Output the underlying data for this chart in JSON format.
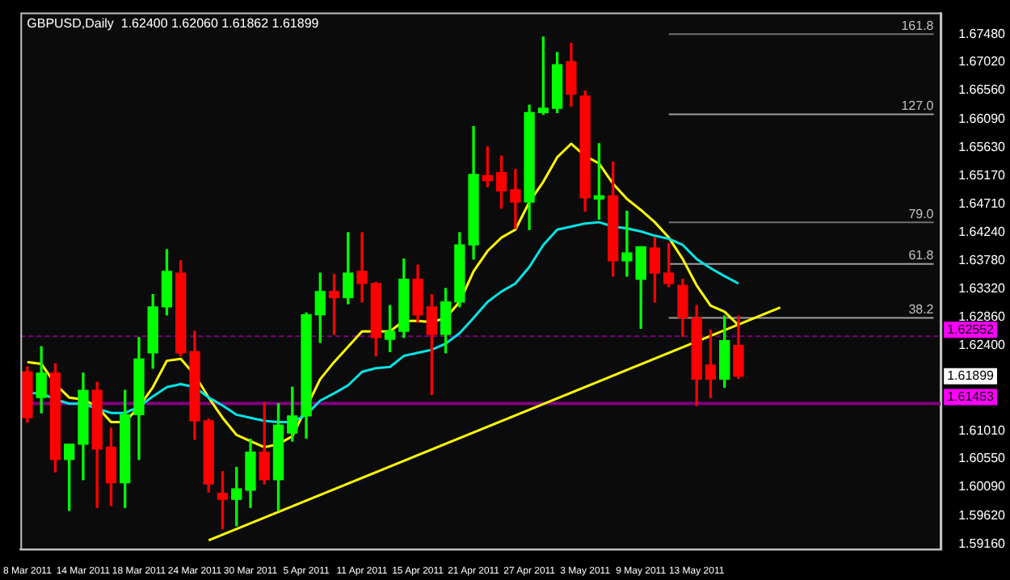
{
  "chart_data": {
    "type": "candlestick",
    "title": "GBPUSD,Daily  1.62400 1.62060 1.61862 1.61899",
    "categories": [
      "8 Mar 2011",
      null,
      null,
      null,
      "14 Mar 2011",
      null,
      null,
      null,
      "18 Mar 2011",
      null,
      null,
      null,
      "24 Mar 2011",
      null,
      null,
      null,
      "30 Mar 2011",
      null,
      null,
      null,
      "5 Apr 2011",
      null,
      null,
      null,
      "11 Apr 2011",
      null,
      null,
      null,
      "15 Apr 2011",
      null,
      null,
      null,
      "21 Apr 2011",
      null,
      null,
      null,
      "27 Apr 2011",
      null,
      null,
      null,
      "3 May 2011",
      null,
      null,
      null,
      "9 May 2011",
      null,
      null,
      null,
      "13 May 2011",
      null,
      null,
      null,
      null,
      null,
      null,
      null,
      null,
      null,
      null,
      null,
      null,
      null,
      null,
      null,
      null,
      null
    ],
    "ohlc": [
      [
        1.6197,
        1.6205,
        1.6115,
        1.6122
      ],
      [
        1.6155,
        1.6238,
        1.613,
        1.6195
      ],
      [
        1.6195,
        1.621,
        1.6034,
        1.6054
      ],
      [
        1.6054,
        1.6079,
        1.5971,
        1.6079
      ],
      [
        1.6079,
        1.6195,
        1.6021,
        1.6167
      ],
      [
        1.6167,
        1.618,
        1.5976,
        1.6071
      ],
      [
        1.6074,
        1.6105,
        1.5979,
        1.6016
      ],
      [
        1.6016,
        1.6167,
        1.5976,
        1.6127
      ],
      [
        1.6127,
        1.6253,
        1.6054,
        1.6218
      ],
      [
        1.6228,
        1.6323,
        1.6203,
        1.6303
      ],
      [
        1.6303,
        1.6396,
        1.629,
        1.6361
      ],
      [
        1.6358,
        1.6378,
        1.6223,
        1.6228
      ],
      [
        1.623,
        1.6263,
        1.6087,
        1.6117
      ],
      [
        1.6117,
        1.612,
        1.6001,
        1.6014
      ],
      [
        1.5999,
        1.6034,
        1.5941,
        1.5989
      ],
      [
        1.5989,
        1.6041,
        1.5946,
        1.6006
      ],
      [
        1.6004,
        1.6087,
        1.5976,
        1.6066
      ],
      [
        1.6066,
        1.6147,
        1.6014,
        1.6021
      ],
      [
        1.6021,
        1.6145,
        1.5971,
        1.611
      ],
      [
        1.6097,
        1.6172,
        1.6084,
        1.6125
      ],
      [
        1.6125,
        1.6293,
        1.6089,
        1.629
      ],
      [
        1.629,
        1.6358,
        1.6245,
        1.6328
      ],
      [
        1.6328,
        1.6356,
        1.6258,
        1.6318
      ],
      [
        1.6318,
        1.6424,
        1.6308,
        1.6358
      ],
      [
        1.6361,
        1.6424,
        1.6311,
        1.6341
      ],
      [
        1.6341,
        1.6343,
        1.6223,
        1.6253
      ],
      [
        1.625,
        1.6305,
        1.623,
        1.6263
      ],
      [
        1.6263,
        1.6381,
        1.6253,
        1.6348
      ],
      [
        1.6348,
        1.6371,
        1.6278,
        1.629
      ],
      [
        1.6303,
        1.6323,
        1.616,
        1.6258
      ],
      [
        1.6258,
        1.6333,
        1.6228,
        1.6311
      ],
      [
        1.6311,
        1.6424,
        1.6303,
        1.6404
      ],
      [
        1.6404,
        1.6597,
        1.6381,
        1.6519
      ],
      [
        1.6517,
        1.6564,
        1.6499,
        1.6509
      ],
      [
        1.6522,
        1.6549,
        1.6464,
        1.6492
      ],
      [
        1.6494,
        1.6527,
        1.6431,
        1.6474
      ],
      [
        1.6474,
        1.6632,
        1.6429,
        1.662
      ],
      [
        1.662,
        1.6743,
        1.6617,
        1.6627
      ],
      [
        1.6627,
        1.6718,
        1.662,
        1.6698
      ],
      [
        1.6703,
        1.6733,
        1.663,
        1.665
      ],
      [
        1.6647,
        1.6655,
        1.6459,
        1.6481
      ],
      [
        1.6479,
        1.6569,
        1.6446,
        1.6484
      ],
      [
        1.6484,
        1.6539,
        1.6353,
        1.6378
      ],
      [
        1.6378,
        1.6459,
        1.6353,
        1.6391
      ],
      [
        1.6348,
        1.6401,
        1.6268,
        1.6401
      ],
      [
        1.6399,
        1.6416,
        1.6311,
        1.6358
      ],
      [
        1.6358,
        1.6406,
        1.6336,
        1.6341
      ],
      [
        1.6338,
        1.6348,
        1.6255,
        1.6285
      ],
      [
        1.6285,
        1.6305,
        1.6142,
        1.6185
      ],
      [
        1.6208,
        1.6265,
        1.6155,
        1.6185
      ],
      [
        1.6185,
        1.6288,
        1.6172,
        1.6248
      ],
      [
        1.624,
        1.6288,
        1.61862,
        1.61899
      ],
      null,
      null,
      null,
      null,
      null,
      null,
      null,
      null,
      null,
      null,
      null,
      null,
      null,
      null
    ],
    "colors": [
      "#ff0000",
      "#00ff00",
      "#ff0000",
      "#00ff00",
      "#00ff00",
      "#ff0000",
      "#ff0000",
      "#00ff00",
      "#00ff00",
      "#00ff00",
      "#00ff00",
      "#ff0000",
      "#ff0000",
      "#ff0000",
      "#ff0000",
      "#00ff00",
      "#00ff00",
      "#ff0000",
      "#00ff00",
      "#00ff00",
      "#00ff00",
      "#00ff00",
      "#ff0000",
      "#00ff00",
      "#ff0000",
      "#ff0000",
      "#00ff00",
      "#00ff00",
      "#ff0000",
      "#ff0000",
      "#00ff00",
      "#00ff00",
      "#00ff00",
      "#ff0000",
      "#ff0000",
      "#ff0000",
      "#00ff00",
      "#00ff00",
      "#00ff00",
      "#ff0000",
      "#ff0000",
      "#00ff00",
      "#ff0000",
      "#00ff00",
      "#00ff00",
      "#ff0000",
      "#ff0000",
      "#ff0000",
      "#ff0000",
      "#ff0000",
      "#00ff00",
      "#ff0000",
      null,
      null,
      null,
      null,
      null,
      null,
      null,
      null,
      null,
      null,
      null,
      null,
      null,
      null
    ],
    "series": [
      {
        "type": "line",
        "color": "#00e5e5",
        "values": [
          1.6162,
          1.6162,
          1.6152,
          1.6145,
          1.6145,
          1.6137,
          1.613,
          1.613,
          1.614,
          1.6157,
          1.6172,
          1.6177,
          1.6172,
          1.6155,
          1.6142,
          1.6127,
          1.6122,
          1.6117,
          1.6115,
          1.6115,
          1.6127,
          1.615,
          1.6162,
          1.6175,
          1.6197,
          1.6203,
          1.6205,
          1.6223,
          1.6228,
          1.6233,
          1.6243,
          1.626,
          1.6285,
          1.6311,
          1.6328,
          1.6341,
          1.6368,
          1.6404,
          1.6429,
          1.6434,
          1.6439,
          1.6441,
          1.6434,
          1.6431,
          1.6426,
          1.6419,
          1.6414,
          1.6404,
          1.6381,
          1.6366,
          1.6353,
          1.6341,
          null,
          null,
          null,
          null,
          null,
          null,
          null,
          null,
          null,
          null,
          null,
          null,
          null,
          null
        ]
      },
      {
        "type": "line",
        "color": "#ffff00",
        "values": [
          1.6213,
          1.621,
          1.6177,
          1.6155,
          1.6152,
          1.614,
          1.6115,
          1.6115,
          1.614,
          1.6172,
          1.6215,
          1.6218,
          1.6192,
          1.6155,
          1.6122,
          1.6094,
          1.6084,
          1.6074,
          1.6079,
          1.6092,
          null,
          1.6185,
          1.6213,
          1.6238,
          1.6263,
          1.6263,
          1.6263,
          1.628,
          1.628,
          1.6278,
          1.6285,
          1.6311,
          1.6361,
          1.6394,
          1.6416,
          1.6429,
          1.6474,
          1.6507,
          1.6547,
          1.6569,
          1.6549,
          1.6537,
          1.6504,
          1.6479,
          1.6461,
          1.6441,
          1.6416,
          1.6381,
          1.6338,
          1.6305,
          1.6295,
          1.6273,
          null,
          null,
          null,
          null,
          null,
          null,
          null,
          null,
          null,
          null,
          null,
          null,
          null,
          null
        ]
      },
      {
        "type": "line",
        "color": "#ffff00",
        "values": [
          null,
          null,
          null,
          null,
          null,
          null,
          null,
          null,
          null,
          null,
          null,
          null,
          null,
          1.5922,
          null,
          null,
          null,
          null,
          null,
          null,
          null,
          null,
          null,
          null,
          null,
          null,
          null,
          null,
          null,
          null,
          null,
          null,
          null,
          null,
          null,
          null,
          null,
          null,
          null,
          null,
          null,
          null,
          null,
          null,
          null,
          null,
          null,
          null,
          null,
          null,
          null,
          null,
          null,
          null,
          1.6302,
          null,
          null,
          null,
          null,
          null,
          null,
          null,
          null,
          null,
          null,
          null
        ]
      },
      {
        "type": "line",
        "name": "161.8",
        "color": "#707070",
        "values": [
          null,
          null,
          null,
          null,
          null,
          null,
          null,
          null,
          null,
          null,
          null,
          null,
          null,
          null,
          null,
          null,
          null,
          null,
          null,
          null,
          null,
          null,
          null,
          null,
          null,
          null,
          null,
          null,
          null,
          null,
          null,
          null,
          null,
          null,
          null,
          null,
          null,
          null,
          null,
          null,
          null,
          null,
          null,
          null,
          null,
          null,
          1.6748,
          1.6748,
          1.6748,
          1.6748,
          1.6748,
          1.6748,
          1.6748,
          1.6748,
          1.6748,
          1.6748,
          1.6748,
          1.6748,
          1.6748,
          1.6748,
          1.6748,
          1.6748,
          1.6748,
          1.6748,
          1.6748,
          1.6748
        ]
      },
      {
        "type": "line",
        "name": "127.0",
        "color": "#a0a0a0",
        "values": [
          null,
          null,
          null,
          null,
          null,
          null,
          null,
          null,
          null,
          null,
          null,
          null,
          null,
          null,
          null,
          null,
          null,
          null,
          null,
          null,
          null,
          null,
          null,
          null,
          null,
          null,
          null,
          null,
          null,
          null,
          null,
          null,
          null,
          null,
          null,
          null,
          null,
          null,
          null,
          null,
          null,
          null,
          null,
          null,
          null,
          null,
          1.6617,
          1.6617,
          1.6617,
          1.6617,
          1.6617,
          1.6617,
          1.6617,
          1.6617,
          1.6617,
          1.6617,
          1.6617,
          1.6617,
          1.6617,
          1.6617,
          1.6617,
          1.6617,
          1.6617,
          1.6617,
          1.6617,
          1.6617
        ]
      },
      {
        "type": "line",
        "name": "79.0",
        "color": "#707070",
        "values": [
          null,
          null,
          null,
          null,
          null,
          null,
          null,
          null,
          null,
          null,
          null,
          null,
          null,
          null,
          null,
          null,
          null,
          null,
          null,
          null,
          null,
          null,
          null,
          null,
          null,
          null,
          null,
          null,
          null,
          null,
          null,
          null,
          null,
          null,
          null,
          null,
          null,
          null,
          null,
          null,
          null,
          null,
          null,
          null,
          null,
          null,
          1.6441,
          1.6441,
          1.6441,
          1.6441,
          1.6441,
          1.6441,
          1.6441,
          1.6441,
          1.6441,
          1.6441,
          1.6441,
          1.6441,
          1.6441,
          1.6441,
          1.6441,
          1.6441,
          1.6441,
          1.6441,
          1.6441,
          1.6441
        ]
      },
      {
        "type": "line",
        "name": "61.8",
        "color": "#a0a0a0",
        "values": [
          null,
          null,
          null,
          null,
          null,
          null,
          null,
          null,
          null,
          null,
          null,
          null,
          null,
          null,
          null,
          null,
          null,
          null,
          null,
          null,
          null,
          null,
          null,
          null,
          null,
          null,
          null,
          null,
          null,
          null,
          null,
          null,
          null,
          null,
          null,
          null,
          null,
          null,
          null,
          null,
          null,
          null,
          null,
          null,
          null,
          null,
          1.6373,
          1.6373,
          1.6373,
          1.6373,
          1.6373,
          1.6373,
          1.6373,
          1.6373,
          1.6373,
          1.6373,
          1.6373,
          1.6373,
          1.6373,
          1.6373,
          1.6373,
          1.6373,
          1.6373,
          1.6373,
          1.6373,
          1.6373
        ]
      },
      {
        "type": "line",
        "name": "38.2",
        "color": "#a0a0a0",
        "values": [
          null,
          null,
          null,
          null,
          null,
          null,
          null,
          null,
          null,
          null,
          null,
          null,
          null,
          null,
          null,
          null,
          null,
          null,
          null,
          null,
          null,
          null,
          null,
          null,
          null,
          null,
          null,
          null,
          null,
          null,
          null,
          null,
          null,
          null,
          null,
          null,
          null,
          null,
          null,
          null,
          null,
          null,
          null,
          null,
          null,
          null,
          1.6285,
          1.6285,
          1.6285,
          1.6285,
          1.6285,
          1.6285,
          1.6285,
          1.6285,
          1.6285,
          1.6285,
          1.6285,
          1.6285,
          1.6285,
          1.6285,
          1.6285,
          1.6285,
          1.6285,
          1.6285,
          1.6285,
          1.6285
        ]
      }
    ],
    "ref_lines": [
      {
        "axis": "y",
        "value": 1.62552,
        "label": "1.62552",
        "color": "#800080",
        "line_style": "dashed"
      },
      {
        "axis": "y",
        "value": 1.61453,
        "label": "1.61453",
        "color": "#800080",
        "line_style": "solid"
      }
    ],
    "annotations": [
      {
        "text": "1.61899",
        "y": 1.61899
      }
    ],
    "ylim": [
      1.5908,
      1.6783
    ],
    "yticks": [
      {
        "value": 1.6748,
        "label": "1.67480"
      },
      {
        "value": 1.6702,
        "label": "1.67020"
      },
      {
        "value": 1.6656,
        "label": "1.66560"
      },
      {
        "value": 1.6609,
        "label": "1.66090"
      },
      {
        "value": 1.6563,
        "label": "1.65630"
      },
      {
        "value": 1.6517,
        "label": "1.65170"
      },
      {
        "value": 1.6471,
        "label": "1.64710"
      },
      {
        "value": 1.6424,
        "label": "1.64240"
      },
      {
        "value": 1.6378,
        "label": "1.63780"
      },
      {
        "value": 1.6332,
        "label": "1.63320"
      },
      {
        "value": 1.6286,
        "label": "1.62860"
      },
      {
        "value": 1.624,
        "label": "1.62400"
      },
      {
        "value": 1.6101,
        "label": "1.61010"
      },
      {
        "value": 1.6055,
        "label": "1.60550"
      },
      {
        "value": 1.6009,
        "label": "1.60090"
      },
      {
        "value": 1.5962,
        "label": "1.59620"
      },
      {
        "value": 1.5916,
        "label": "1.59160"
      }
    ],
    "grid": false
  }
}
